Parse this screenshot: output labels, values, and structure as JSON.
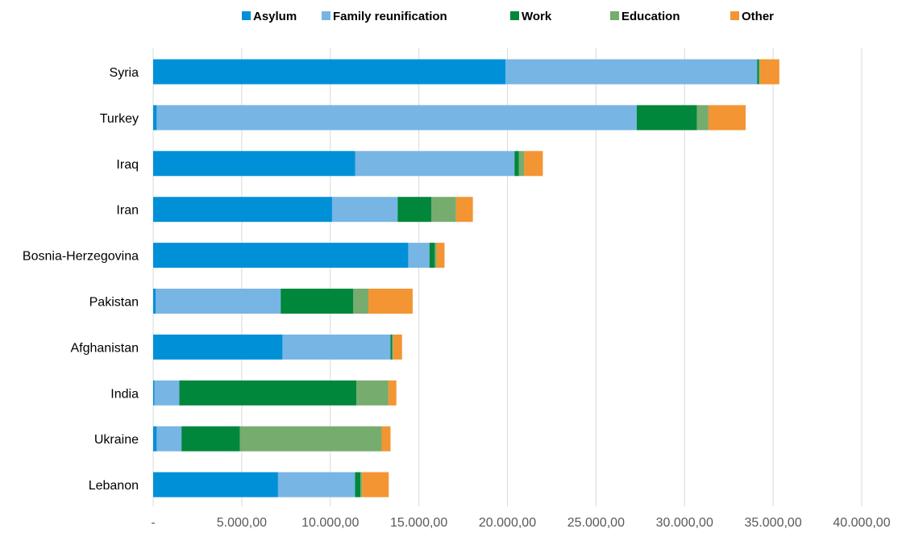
{
  "chart_data": {
    "type": "bar",
    "orientation": "horizontal",
    "stacked": true,
    "categories": [
      "Syria",
      "Turkey",
      "Iraq",
      "Iran",
      "Bosnia-Herzegovina",
      "Pakistan",
      "Afghanistan",
      "India",
      "Ukraine",
      "Lebanon"
    ],
    "series": [
      {
        "name": "Asylum",
        "color": "#0090d8",
        "values": [
          19900,
          200,
          11400,
          10100,
          14400,
          150,
          7300,
          80,
          200,
          7050
        ]
      },
      {
        "name": "Family reunification",
        "color": "#77b5e5",
        "values": [
          14200,
          27100,
          9000,
          3700,
          1200,
          7050,
          6100,
          1400,
          1400,
          4350
        ]
      },
      {
        "name": "Work",
        "color": "#00873c",
        "values": [
          100,
          3400,
          250,
          1900,
          300,
          4100,
          100,
          10000,
          3300,
          300
        ]
      },
      {
        "name": "Education",
        "color": "#76ac6e",
        "values": [
          50,
          650,
          300,
          1400,
          100,
          850,
          50,
          1800,
          8000,
          100
        ]
      },
      {
        "name": "Other",
        "color": "#f39533",
        "values": [
          1100,
          2100,
          1050,
          950,
          450,
          2500,
          500,
          450,
          500,
          1500
        ]
      }
    ],
    "xlim": [
      0,
      40000
    ],
    "x_ticks": [
      "-",
      "5.000,00",
      "10.000,00",
      "15.000,00",
      "20.000,00",
      "25.000,00",
      "30.000,00",
      "35.000,00",
      "40.000,00"
    ],
    "grid": "vertical",
    "legend_position": "top"
  }
}
